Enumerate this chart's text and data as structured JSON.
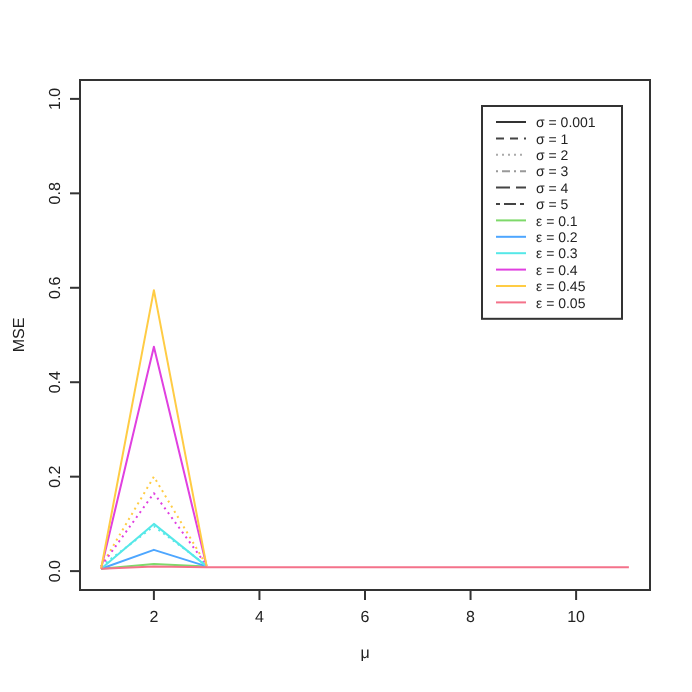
{
  "chart_data": {
    "type": "line",
    "xlabel": "μ",
    "ylabel": "MSE",
    "x": [
      1,
      2,
      3,
      4,
      5,
      6,
      7,
      8,
      9,
      10,
      11
    ],
    "xlim": [
      0.6,
      11.4
    ],
    "ylim": [
      -0.04,
      1.04
    ],
    "xticks": [
      2,
      4,
      6,
      8,
      10
    ],
    "yticks": [
      {
        "value": 0,
        "label": "0.0"
      },
      {
        "value": 0.2,
        "label": "0.2"
      },
      {
        "value": 0.4,
        "label": "0.4"
      },
      {
        "value": 0.6,
        "label": "0.6"
      },
      {
        "value": 0.8,
        "label": "0.8"
      },
      {
        "value": 1,
        "label": "1.0"
      }
    ],
    "grid": false,
    "legend": "top right",
    "marker": "none",
    "series": [
      {
        "name": "σ = 0.001",
        "color": "#333333",
        "line_style": "solid",
        "values": [
          null,
          null,
          null,
          null,
          null,
          null,
          null,
          null,
          null,
          null,
          null
        ]
      },
      {
        "name": "σ = 1",
        "color": "#444444",
        "line_style": "dashed",
        "values": [
          null,
          null,
          null,
          null,
          null,
          null,
          null,
          null,
          null,
          null,
          null
        ]
      },
      {
        "name": "σ = 2",
        "color": "#aaaaaa",
        "line_style": "dotted",
        "values": [
          null,
          null,
          null,
          null,
          null,
          null,
          null,
          null,
          null,
          null,
          null
        ]
      },
      {
        "name": "σ = 3",
        "color": "#999999",
        "line_style": "dotdash",
        "values": [
          null,
          null,
          null,
          null,
          null,
          null,
          null,
          null,
          null,
          null,
          null
        ]
      },
      {
        "name": "σ = 4",
        "color": "#444444",
        "line_style": "longdash",
        "values": [
          null,
          null,
          null,
          null,
          null,
          null,
          null,
          null,
          null,
          null,
          null
        ]
      },
      {
        "name": "σ = 5",
        "color": "#444444",
        "line_style": "twodash",
        "values": [
          null,
          null,
          null,
          null,
          null,
          null,
          null,
          null,
          null,
          null,
          null
        ]
      },
      {
        "color": "#ffcc44",
        "line_style": "dotted",
        "values": [
          0.01,
          0.2,
          0.012,
          null,
          null,
          null,
          null,
          null,
          null,
          null,
          null
        ]
      },
      {
        "color": "#e040e0",
        "line_style": "dotted",
        "values": [
          0.01,
          0.165,
          0.012,
          null,
          null,
          null,
          null,
          null,
          null,
          null,
          null
        ]
      },
      {
        "color": "#55e8e8",
        "line_style": "dotted",
        "values": [
          0.01,
          0.095,
          0.012,
          null,
          null,
          null,
          null,
          null,
          null,
          null,
          null
        ]
      },
      {
        "name": "ε = 0.1",
        "color": "#7ed96a",
        "line_style": "solid",
        "values": [
          0.005,
          0.015,
          0.01,
          null,
          null,
          null,
          null,
          null,
          null,
          null,
          null
        ]
      },
      {
        "name": "ε = 0.2",
        "color": "#4da6ff",
        "line_style": "solid",
        "values": [
          0.005,
          0.045,
          0.01,
          null,
          null,
          null,
          null,
          null,
          null,
          null,
          null
        ]
      },
      {
        "name": "ε = 0.3",
        "color": "#55e8e8",
        "line_style": "solid",
        "values": [
          0.005,
          0.1,
          0.01,
          null,
          null,
          null,
          null,
          null,
          null,
          null,
          null
        ]
      },
      {
        "name": "ε = 0.4",
        "color": "#e040e0",
        "line_style": "solid",
        "values": [
          0.005,
          0.475,
          0.01,
          null,
          null,
          null,
          null,
          null,
          null,
          null,
          null
        ]
      },
      {
        "name": "ε = 0.45",
        "color": "#ffcc44",
        "line_style": "solid",
        "values": [
          0.005,
          0.595,
          0.01,
          null,
          null,
          null,
          null,
          null,
          null,
          null,
          null
        ]
      },
      {
        "name": "ε = 0.05",
        "color": "#f4728a",
        "line_style": "solid",
        "values": [
          0.005,
          0.01,
          0.008,
          0.008,
          0.008,
          0.008,
          0.008,
          0.008,
          0.008,
          0.008,
          0.008
        ]
      }
    ]
  }
}
